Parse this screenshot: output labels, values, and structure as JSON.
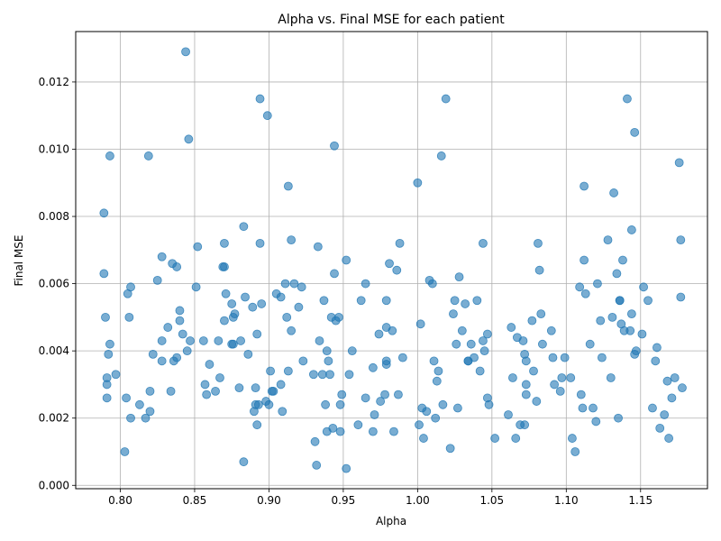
{
  "chart_data": {
    "type": "scatter",
    "title": "Alpha vs. Final MSE for each patient",
    "xlabel": "Alpha",
    "ylabel": "Final MSE",
    "xlim": [
      0.77,
      1.195
    ],
    "ylim": [
      -0.0001,
      0.0135
    ],
    "xticks": [
      "0.80",
      "0.85",
      "0.90",
      "0.95",
      "1.00",
      "1.05",
      "1.10",
      "1.15"
    ],
    "xtick_values": [
      0.8,
      0.85,
      0.9,
      0.95,
      1.0,
      1.05,
      1.1,
      1.15
    ],
    "yticks": [
      "0.000",
      "0.002",
      "0.004",
      "0.006",
      "0.008",
      "0.010",
      "0.012"
    ],
    "ytick_values": [
      0.0,
      0.002,
      0.004,
      0.006,
      0.008,
      0.01,
      0.012
    ],
    "grid": true,
    "marker_color": "#1f77b4",
    "marker_alpha": 0.6,
    "points": [
      [
        0.789,
        0.0081
      ],
      [
        0.789,
        0.0063
      ],
      [
        0.79,
        0.005
      ],
      [
        0.791,
        0.0032
      ],
      [
        0.791,
        0.003
      ],
      [
        0.791,
        0.0026
      ],
      [
        0.792,
        0.0039
      ],
      [
        0.793,
        0.0098
      ],
      [
        0.793,
        0.0042
      ],
      [
        0.797,
        0.0033
      ],
      [
        0.803,
        0.001
      ],
      [
        0.804,
        0.0026
      ],
      [
        0.805,
        0.0057
      ],
      [
        0.806,
        0.005
      ],
      [
        0.807,
        0.0059
      ],
      [
        0.807,
        0.002
      ],
      [
        0.813,
        0.0024
      ],
      [
        0.817,
        0.002
      ],
      [
        0.819,
        0.0098
      ],
      [
        0.82,
        0.0028
      ],
      [
        0.82,
        0.0022
      ],
      [
        0.822,
        0.0039
      ],
      [
        0.825,
        0.0061
      ],
      [
        0.828,
        0.0068
      ],
      [
        0.828,
        0.0043
      ],
      [
        0.828,
        0.0037
      ],
      [
        0.832,
        0.0047
      ],
      [
        0.834,
        0.0028
      ],
      [
        0.835,
        0.0066
      ],
      [
        0.836,
        0.0037
      ],
      [
        0.838,
        0.0065
      ],
      [
        0.838,
        0.0038
      ],
      [
        0.84,
        0.0052
      ],
      [
        0.84,
        0.0049
      ],
      [
        0.842,
        0.0045
      ],
      [
        0.844,
        0.0129
      ],
      [
        0.845,
        0.004
      ],
      [
        0.846,
        0.0103
      ],
      [
        0.847,
        0.0043
      ],
      [
        0.851,
        0.0059
      ],
      [
        0.852,
        0.0071
      ],
      [
        0.856,
        0.0043
      ],
      [
        0.857,
        0.003
      ],
      [
        0.858,
        0.0027
      ],
      [
        0.86,
        0.0036
      ],
      [
        0.864,
        0.0028
      ],
      [
        0.866,
        0.0043
      ],
      [
        0.867,
        0.0032
      ],
      [
        0.869,
        0.0065
      ],
      [
        0.87,
        0.0065
      ],
      [
        0.87,
        0.0072
      ],
      [
        0.87,
        0.0049
      ],
      [
        0.871,
        0.0057
      ],
      [
        0.875,
        0.0054
      ],
      [
        0.875,
        0.0042
      ],
      [
        0.876,
        0.0042
      ],
      [
        0.876,
        0.005
      ],
      [
        0.877,
        0.0051
      ],
      [
        0.88,
        0.0029
      ],
      [
        0.881,
        0.0043
      ],
      [
        0.883,
        0.0007
      ],
      [
        0.883,
        0.0077
      ],
      [
        0.884,
        0.0056
      ],
      [
        0.886,
        0.0039
      ],
      [
        0.889,
        0.0053
      ],
      [
        0.89,
        0.0022
      ],
      [
        0.891,
        0.0024
      ],
      [
        0.891,
        0.0029
      ],
      [
        0.892,
        0.0045
      ],
      [
        0.892,
        0.0018
      ],
      [
        0.893,
        0.0024
      ],
      [
        0.894,
        0.0115
      ],
      [
        0.894,
        0.0072
      ],
      [
        0.895,
        0.0054
      ],
      [
        0.898,
        0.0025
      ],
      [
        0.899,
        0.011
      ],
      [
        0.9,
        0.0024
      ],
      [
        0.901,
        0.0034
      ],
      [
        0.902,
        0.0028
      ],
      [
        0.903,
        0.0028
      ],
      [
        0.905,
        0.0057
      ],
      [
        0.908,
        0.0056
      ],
      [
        0.908,
        0.003
      ],
      [
        0.909,
        0.0022
      ],
      [
        0.911,
        0.006
      ],
      [
        0.912,
        0.005
      ],
      [
        0.913,
        0.0089
      ],
      [
        0.913,
        0.0034
      ],
      [
        0.915,
        0.0073
      ],
      [
        0.915,
        0.0046
      ],
      [
        0.917,
        0.006
      ],
      [
        0.92,
        0.0053
      ],
      [
        0.922,
        0.0059
      ],
      [
        0.923,
        0.0037
      ],
      [
        0.93,
        0.0033
      ],
      [
        0.931,
        0.0013
      ],
      [
        0.932,
        0.0006
      ],
      [
        0.933,
        0.0071
      ],
      [
        0.934,
        0.0043
      ],
      [
        0.936,
        0.0033
      ],
      [
        0.937,
        0.0055
      ],
      [
        0.938,
        0.0024
      ],
      [
        0.939,
        0.004
      ],
      [
        0.939,
        0.0016
      ],
      [
        0.94,
        0.0037
      ],
      [
        0.941,
        0.0033
      ],
      [
        0.942,
        0.005
      ],
      [
        0.943,
        0.0017
      ],
      [
        0.944,
        0.0101
      ],
      [
        0.944,
        0.0063
      ],
      [
        0.945,
        0.0049
      ],
      [
        0.947,
        0.005
      ],
      [
        0.948,
        0.0024
      ],
      [
        0.948,
        0.0016
      ],
      [
        0.949,
        0.0027
      ],
      [
        0.952,
        0.0067
      ],
      [
        0.952,
        0.0005
      ],
      [
        0.954,
        0.0033
      ],
      [
        0.956,
        0.004
      ],
      [
        0.96,
        0.0018
      ],
      [
        0.962,
        0.0055
      ],
      [
        0.965,
        0.006
      ],
      [
        0.965,
        0.0026
      ],
      [
        0.97,
        0.0035
      ],
      [
        0.97,
        0.0016
      ],
      [
        0.971,
        0.0021
      ],
      [
        0.974,
        0.0045
      ],
      [
        0.975,
        0.0025
      ],
      [
        0.978,
        0.0027
      ],
      [
        0.979,
        0.0055
      ],
      [
        0.979,
        0.0047
      ],
      [
        0.979,
        0.0037
      ],
      [
        0.979,
        0.0036
      ],
      [
        0.981,
        0.0066
      ],
      [
        0.983,
        0.0046
      ],
      [
        0.984,
        0.0016
      ],
      [
        0.986,
        0.0064
      ],
      [
        0.987,
        0.0027
      ],
      [
        0.988,
        0.0072
      ],
      [
        0.99,
        0.0038
      ],
      [
        1.0,
        0.009
      ],
      [
        1.001,
        0.0018
      ],
      [
        1.002,
        0.0048
      ],
      [
        1.003,
        0.0023
      ],
      [
        1.004,
        0.0014
      ],
      [
        1.006,
        0.0022
      ],
      [
        1.008,
        0.0061
      ],
      [
        1.01,
        0.006
      ],
      [
        1.011,
        0.0037
      ],
      [
        1.012,
        0.002
      ],
      [
        1.013,
        0.0031
      ],
      [
        1.014,
        0.0034
      ],
      [
        1.016,
        0.0098
      ],
      [
        1.017,
        0.0024
      ],
      [
        1.019,
        0.0115
      ],
      [
        1.022,
        0.0011
      ],
      [
        1.024,
        0.0051
      ],
      [
        1.025,
        0.0055
      ],
      [
        1.026,
        0.0042
      ],
      [
        1.027,
        0.0023
      ],
      [
        1.028,
        0.0062
      ],
      [
        1.03,
        0.0046
      ],
      [
        1.032,
        0.0054
      ],
      [
        1.034,
        0.0037
      ],
      [
        1.034,
        0.0037
      ],
      [
        1.036,
        0.0042
      ],
      [
        1.038,
        0.0038
      ],
      [
        1.04,
        0.0055
      ],
      [
        1.042,
        0.0034
      ],
      [
        1.044,
        0.0072
      ],
      [
        1.044,
        0.0043
      ],
      [
        1.045,
        0.004
      ],
      [
        1.047,
        0.0045
      ],
      [
        1.047,
        0.0026
      ],
      [
        1.048,
        0.0024
      ],
      [
        1.052,
        0.0014
      ],
      [
        1.061,
        0.0021
      ],
      [
        1.063,
        0.0047
      ],
      [
        1.064,
        0.0032
      ],
      [
        1.066,
        0.0014
      ],
      [
        1.067,
        0.0044
      ],
      [
        1.069,
        0.0018
      ],
      [
        1.071,
        0.0043
      ],
      [
        1.072,
        0.0039
      ],
      [
        1.072,
        0.0018
      ],
      [
        1.073,
        0.0037
      ],
      [
        1.073,
        0.003
      ],
      [
        1.073,
        0.0027
      ],
      [
        1.077,
        0.0049
      ],
      [
        1.078,
        0.0034
      ],
      [
        1.08,
        0.0025
      ],
      [
        1.081,
        0.0072
      ],
      [
        1.082,
        0.0064
      ],
      [
        1.083,
        0.0051
      ],
      [
        1.084,
        0.0042
      ],
      [
        1.09,
        0.0046
      ],
      [
        1.091,
        0.0038
      ],
      [
        1.092,
        0.003
      ],
      [
        1.096,
        0.0028
      ],
      [
        1.097,
        0.0032
      ],
      [
        1.099,
        0.0038
      ],
      [
        1.103,
        0.0032
      ],
      [
        1.104,
        0.0014
      ],
      [
        1.106,
        0.001
      ],
      [
        1.109,
        0.0059
      ],
      [
        1.11,
        0.0027
      ],
      [
        1.111,
        0.0023
      ],
      [
        1.112,
        0.0089
      ],
      [
        1.112,
        0.0067
      ],
      [
        1.113,
        0.0057
      ],
      [
        1.116,
        0.0042
      ],
      [
        1.118,
        0.0023
      ],
      [
        1.12,
        0.0019
      ],
      [
        1.121,
        0.006
      ],
      [
        1.123,
        0.0049
      ],
      [
        1.124,
        0.0038
      ],
      [
        1.128,
        0.0073
      ],
      [
        1.13,
        0.0032
      ],
      [
        1.131,
        0.005
      ],
      [
        1.132,
        0.0087
      ],
      [
        1.134,
        0.0063
      ],
      [
        1.135,
        0.002
      ],
      [
        1.136,
        0.0055
      ],
      [
        1.136,
        0.0055
      ],
      [
        1.137,
        0.0048
      ],
      [
        1.138,
        0.0067
      ],
      [
        1.139,
        0.0046
      ],
      [
        1.141,
        0.0115
      ],
      [
        1.143,
        0.0046
      ],
      [
        1.144,
        0.0076
      ],
      [
        1.144,
        0.0051
      ],
      [
        1.146,
        0.0105
      ],
      [
        1.146,
        0.0039
      ],
      [
        1.147,
        0.004
      ],
      [
        1.151,
        0.0045
      ],
      [
        1.152,
        0.0059
      ],
      [
        1.155,
        0.0055
      ],
      [
        1.158,
        0.0023
      ],
      [
        1.16,
        0.0037
      ],
      [
        1.161,
        0.0041
      ],
      [
        1.163,
        0.0017
      ],
      [
        1.166,
        0.0021
      ],
      [
        1.168,
        0.0031
      ],
      [
        1.169,
        0.0014
      ],
      [
        1.171,
        0.0026
      ],
      [
        1.173,
        0.0032
      ],
      [
        1.176,
        0.0096
      ],
      [
        1.177,
        0.0073
      ],
      [
        1.177,
        0.0056
      ],
      [
        1.178,
        0.0029
      ]
    ]
  }
}
